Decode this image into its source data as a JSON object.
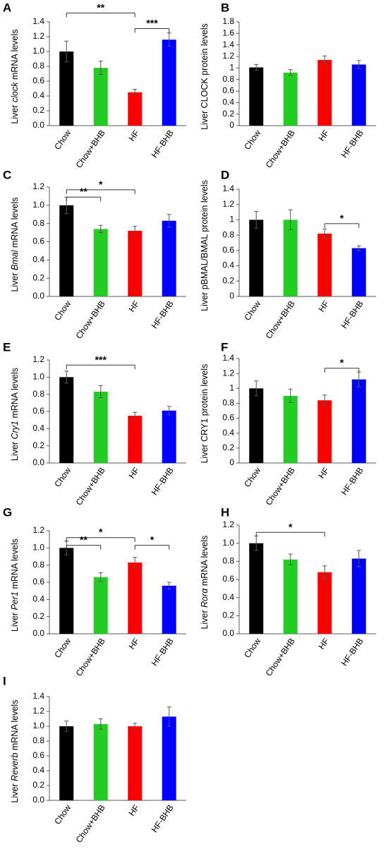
{
  "categories": [
    "Chow",
    "Chow+BHB",
    "HF",
    "HF-BHB"
  ],
  "colors": {
    "Chow": "#000000",
    "Chow+BHB": "#22cc22",
    "HF": "#ff0000",
    "HF-BHB": "#0000ff",
    "axis": "#595959",
    "text": "#000000"
  },
  "chart_data": [
    {
      "panel": "A",
      "type": "bar",
      "ylabel_parts": [
        {
          "t": "Liver "
        },
        {
          "t": "clock",
          "i": true
        },
        {
          "t": " mRNA levels"
        }
      ],
      "ylim": [
        0,
        1.4
      ],
      "yticks": [
        0,
        0.2,
        0.4,
        0.6,
        0.8,
        1.0,
        1.2,
        1.4
      ],
      "tick_decimals": 1,
      "categories": [
        "Chow",
        "Chow+BHB",
        "HF",
        "HF-BHB"
      ],
      "values": [
        1.0,
        0.78,
        0.45,
        1.16
      ],
      "errors": [
        0.14,
        0.09,
        0.04,
        0.09
      ],
      "significance": [
        {
          "from": "Chow",
          "to": "HF",
          "label": "**",
          "level": 1.52
        },
        {
          "from": "HF",
          "to": "HF-BHB",
          "label": "***",
          "level": 1.31
        }
      ]
    },
    {
      "panel": "B",
      "type": "bar",
      "ylabel_parts": [
        {
          "t": "Liver CLOCK protein levels"
        }
      ],
      "ylim": [
        0,
        1.8
      ],
      "yticks": [
        0,
        0.2,
        0.4,
        0.6,
        0.8,
        1,
        1.2,
        1.4,
        1.6,
        1.8
      ],
      "tick_decimals": null,
      "categories": [
        "Chow",
        "Chow+BHB",
        "HF",
        "HF-BHB"
      ],
      "values": [
        1.01,
        0.92,
        1.14,
        1.06
      ],
      "errors": [
        0.05,
        0.05,
        0.07,
        0.07
      ],
      "significance": []
    },
    {
      "panel": "C",
      "type": "bar",
      "ylabel_parts": [
        {
          "t": "Liver "
        },
        {
          "t": "Bmal",
          "i": true
        },
        {
          "t": " mRNA levels"
        }
      ],
      "ylim": [
        0,
        1.2
      ],
      "yticks": [
        0,
        0.2,
        0.4,
        0.6,
        0.8,
        1.0,
        1.2
      ],
      "tick_decimals": 1,
      "categories": [
        "Chow",
        "Chow+BHB",
        "HF",
        "HF-BHB"
      ],
      "values": [
        1.0,
        0.74,
        0.72,
        0.83
      ],
      "errors": [
        0.09,
        0.04,
        0.05,
        0.07
      ],
      "significance": [
        {
          "from": "Chow",
          "to": "HF",
          "label": "*",
          "level": 1.17
        },
        {
          "from": "Chow",
          "to": "Chow+BHB",
          "label": "**",
          "level": 1.09
        }
      ]
    },
    {
      "panel": "D",
      "type": "bar",
      "ylabel_parts": [
        {
          "t": "Liver pBMAL/BMAL protein levels"
        }
      ],
      "ylim": [
        0,
        1.4
      ],
      "yticks": [
        0,
        0.2,
        0.4,
        0.6,
        0.8,
        1,
        1.2,
        1.4
      ],
      "tick_decimals": null,
      "categories": [
        "Chow",
        "Chow+BHB",
        "HF",
        "HF-BHB"
      ],
      "values": [
        1.0,
        1.0,
        0.82,
        0.63
      ],
      "errors": [
        0.11,
        0.13,
        0.06,
        0.03
      ],
      "significance": [
        {
          "from": "HF",
          "to": "HF-BHB",
          "label": "*",
          "level": 0.95
        }
      ]
    },
    {
      "panel": "E",
      "type": "bar",
      "ylabel_parts": [
        {
          "t": "Liver "
        },
        {
          "t": "Cry1",
          "i": true
        },
        {
          "t": " mRNA levels"
        }
      ],
      "ylim": [
        0,
        1.2
      ],
      "yticks": [
        0,
        0.2,
        0.4,
        0.6,
        0.8,
        1.0,
        1.2
      ],
      "tick_decimals": 1,
      "categories": [
        "Chow",
        "Chow+BHB",
        "HF",
        "HF-BHB"
      ],
      "values": [
        1.0,
        0.83,
        0.55,
        0.61
      ],
      "errors": [
        0.07,
        0.07,
        0.04,
        0.05
      ],
      "significance": [
        {
          "from": "Chow",
          "to": "HF",
          "label": "***",
          "level": 1.14
        }
      ]
    },
    {
      "panel": "F",
      "type": "bar",
      "ylabel_parts": [
        {
          "t": "Liver CRY1 protein levels"
        }
      ],
      "ylim": [
        0,
        1.4
      ],
      "yticks": [
        0,
        0.2,
        0.4,
        0.6,
        0.8,
        1,
        1.2,
        1.4
      ],
      "tick_decimals": null,
      "categories": [
        "Chow",
        "Chow+BHB",
        "HF",
        "HF-BHB"
      ],
      "values": [
        1.0,
        0.9,
        0.84,
        1.12
      ],
      "errors": [
        0.1,
        0.09,
        0.07,
        0.1
      ],
      "significance": [
        {
          "from": "HF",
          "to": "HF-BHB",
          "label": "*",
          "level": 1.27
        }
      ]
    },
    {
      "panel": "G",
      "type": "bar",
      "ylabel_parts": [
        {
          "t": "Liver "
        },
        {
          "t": "Per1",
          "i": true
        },
        {
          "t": " mRNA levels"
        }
      ],
      "ylim": [
        0,
        1.2
      ],
      "yticks": [
        0,
        0.2,
        0.4,
        0.6,
        0.8,
        1.0,
        1.2
      ],
      "tick_decimals": 1,
      "categories": [
        "Chow",
        "Chow+BHB",
        "HF",
        "HF-BHB"
      ],
      "values": [
        1.0,
        0.66,
        0.83,
        0.56
      ],
      "errors": [
        0.08,
        0.05,
        0.06,
        0.04
      ],
      "significance": [
        {
          "from": "Chow",
          "to": "HF",
          "label": "*",
          "level": 1.12
        },
        {
          "from": "Chow",
          "to": "Chow+BHB",
          "label": "**",
          "level": 1.03
        },
        {
          "from": "HF",
          "to": "HF-BHB",
          "label": "*",
          "level": 1.03
        }
      ]
    },
    {
      "panel": "H",
      "type": "bar",
      "ylabel_parts": [
        {
          "t": "Liver "
        },
        {
          "t": "Rorα",
          "i": true
        },
        {
          "t": " mRNA levels"
        }
      ],
      "ylim": [
        0,
        1.2
      ],
      "yticks": [
        0,
        0.2,
        0.4,
        0.6,
        0.8,
        1.0,
        1.2
      ],
      "tick_decimals": 1,
      "categories": [
        "Chow",
        "Chow+BHB",
        "HF",
        "HF-BHB"
      ],
      "values": [
        1.0,
        0.82,
        0.68,
        0.83
      ],
      "errors": [
        0.08,
        0.06,
        0.07,
        0.09
      ],
      "significance": [
        {
          "from": "Chow",
          "to": "HF",
          "label": "*",
          "level": 1.12
        }
      ]
    },
    {
      "panel": "I",
      "type": "bar",
      "ylabel_parts": [
        {
          "t": "Liver "
        },
        {
          "t": "Reverb",
          "i": true
        },
        {
          "t": " mRNA levels"
        }
      ],
      "ylim": [
        0,
        1.4
      ],
      "yticks": [
        0,
        0.2,
        0.4,
        0.6,
        0.8,
        1.0,
        1.2,
        1.4
      ],
      "tick_decimals": 1,
      "categories": [
        "Chow",
        "Chow+BHB",
        "HF",
        "HF-BHB"
      ],
      "values": [
        1.0,
        1.03,
        1.0,
        1.13
      ],
      "errors": [
        0.07,
        0.07,
        0.04,
        0.13
      ],
      "significance": []
    }
  ]
}
